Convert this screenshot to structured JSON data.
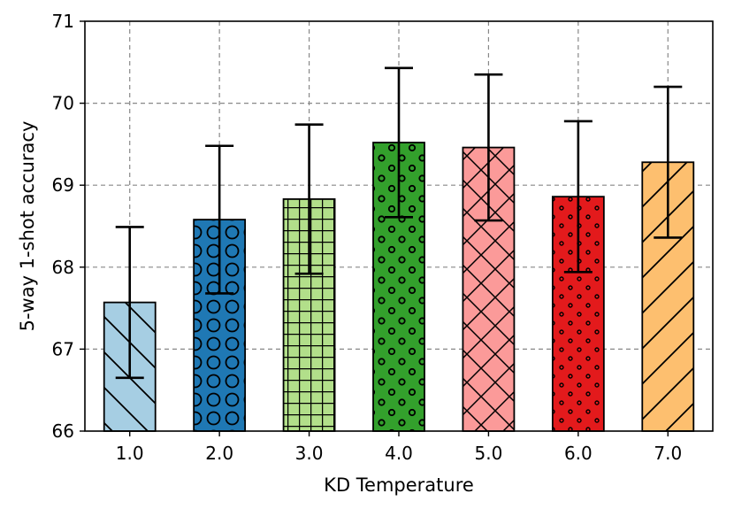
{
  "chart_data": {
    "type": "bar",
    "title": "",
    "xlabel": "KD Temperature",
    "ylabel": "5-way 1-shot accuracy",
    "categories": [
      "1.0",
      "2.0",
      "3.0",
      "4.0",
      "5.0",
      "6.0",
      "7.0"
    ],
    "values": [
      67.57,
      68.58,
      68.83,
      69.52,
      69.46,
      68.86,
      69.28
    ],
    "errors": [
      0.92,
      0.9,
      0.91,
      0.91,
      0.89,
      0.92,
      0.92
    ],
    "ylim": [
      66,
      71
    ],
    "yticks": [
      "66",
      "67",
      "68",
      "69",
      "70",
      "71"
    ],
    "grid": true,
    "bar_colors": [
      "#a6cee3",
      "#1f78b4",
      "#b2df8a",
      "#33a02c",
      "#fb9a99",
      "#e31a1c",
      "#fdbf6f"
    ],
    "hatches": [
      "diagonal-back",
      "large-circles",
      "grid",
      "small-circles",
      "crosshatch",
      "dots",
      "diagonal-forward"
    ]
  }
}
